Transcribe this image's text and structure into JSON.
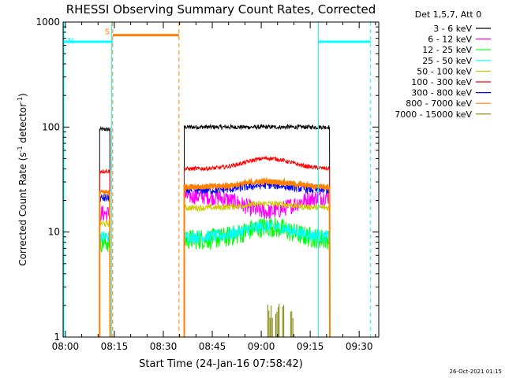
{
  "chart_data": {
    "type": "line",
    "title": "RHESSI Observing Summary Count Rates, Corrected",
    "xlabel": "Start Time (24-Jan-16 07:58:42)",
    "ylabel_main": "Corrected Count Rate (s",
    "ylabel_sup1": "-1",
    "ylabel_mid": " detector",
    "ylabel_sup2": "-1",
    "ylabel_end": ")",
    "yscale": "log",
    "ylim": [
      1,
      1000
    ],
    "xlim_minutes": [
      -0.7,
      96
    ],
    "x_ticks": [
      {
        "min": 0,
        "label": "08:00"
      },
      {
        "min": 15,
        "label": "08:15"
      },
      {
        "min": 30,
        "label": "08:30"
      },
      {
        "min": 45,
        "label": "08:45"
      },
      {
        "min": 60,
        "label": "09:00"
      },
      {
        "min": 75,
        "label": "09:15"
      },
      {
        "min": 90,
        "label": "09:30"
      }
    ],
    "y_ticks": [
      {
        "value": 1,
        "label": "1"
      },
      {
        "value": 10,
        "label": "10"
      },
      {
        "value": 100,
        "label": "100"
      },
      {
        "value": 1000,
        "label": "1000"
      }
    ],
    "legend_title": "Det 1,5,7, Att 0",
    "series": [
      {
        "name": "3 - 6 keV",
        "color": "#000000",
        "seg1": 95,
        "seg2": 100,
        "noise": 0.02,
        "bump": 0.0
      },
      {
        "name": "6 - 12 keV",
        "color": "#ff00ff",
        "seg1": 15,
        "seg2": 22,
        "noise": 0.08,
        "bump": -0.15
      },
      {
        "name": "12 - 25 keV",
        "color": "#00ff00",
        "seg1": 8,
        "seg2": 8.5,
        "noise": 0.1,
        "bump": 0.12
      },
      {
        "name": "25 - 50 keV",
        "color": "#00ffff",
        "seg1": 9,
        "seg2": 9,
        "noise": 0.06,
        "bump": 0.1
      },
      {
        "name": "50 - 100 keV",
        "color": "#cccc00",
        "seg1": 12,
        "seg2": 17,
        "noise": 0.03,
        "bump": 0.04
      },
      {
        "name": "100 - 300 keV",
        "color": "#ff0000",
        "seg1": 38,
        "seg2": 40,
        "noise": 0.02,
        "bump": 0.1
      },
      {
        "name": "300 - 800 keV",
        "color": "#0000ff",
        "seg1": 21,
        "seg2": 25,
        "noise": 0.04,
        "bump": 0.05
      },
      {
        "name": "800 - 7000 keV",
        "color": "#ff8000",
        "seg1": 24,
        "seg2": 27,
        "noise": 0.025,
        "bump": 0.05
      },
      {
        "name": "7000 - 15000 keV",
        "color": "#808000",
        "seg1": 1,
        "seg2": 1,
        "noise": 0,
        "bump": 0
      }
    ],
    "segments": [
      {
        "start": 10.5,
        "end": 13.7
      },
      {
        "start": 36.4,
        "end": 81.0
      }
    ],
    "flags": [
      {
        "label": "S",
        "color": "#ff8000",
        "start": 14.5,
        "end": 34.8,
        "level": 750
      },
      {
        "label": "N",
        "color": "#00ffff",
        "start": -0.7,
        "end": 14.5,
        "level": 650
      },
      {
        "label": "",
        "color": "#00ffff",
        "start": 77.5,
        "end": 93.5,
        "level": 650
      }
    ],
    "vlines": [
      {
        "min": 14.2,
        "color": "#00ffff",
        "style": "solid"
      },
      {
        "min": 14.5,
        "color": "#ff8000",
        "style": "dash"
      },
      {
        "min": 34.8,
        "color": "#ff8000",
        "style": "dash"
      },
      {
        "min": 77.5,
        "color": "#00ffff",
        "style": "solid"
      },
      {
        "min": 93.5,
        "color": "#00ffff",
        "style": "dash"
      }
    ],
    "footer_date": "26-Oct-2021 01:15"
  }
}
